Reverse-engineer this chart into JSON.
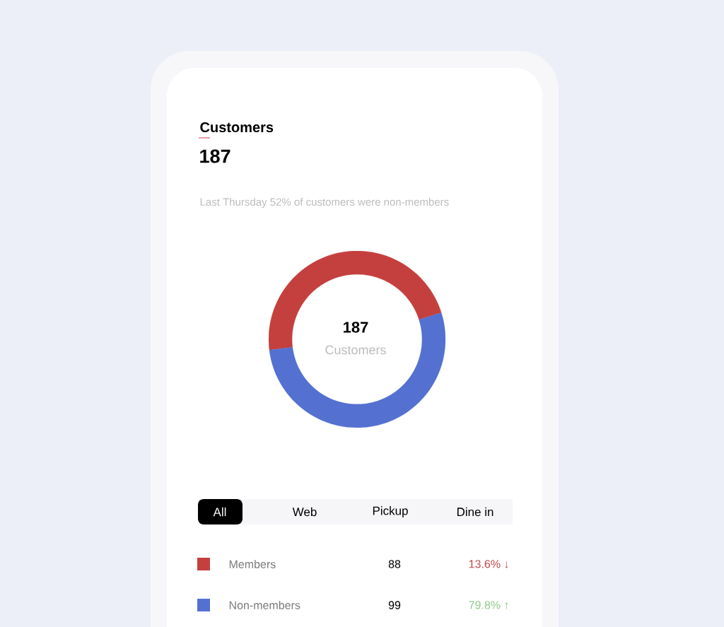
{
  "chart_data": {
    "type": "donut",
    "title": "Customers",
    "subtitle": "187",
    "categories": [
      "Members",
      "Non-members"
    ],
    "values": [
      88,
      99
    ],
    "colors": [
      "#c4403f",
      "#5470d0"
    ],
    "data_labels": true,
    "legend": "bottom",
    "annotations": [
      "Last Thursday 52% of customers were non-members",
      "187",
      "Customers",
      "All",
      "Web",
      "Pickup",
      "Dine in",
      "13.6% ↓",
      "79.8% ↑"
    ]
  }
}
